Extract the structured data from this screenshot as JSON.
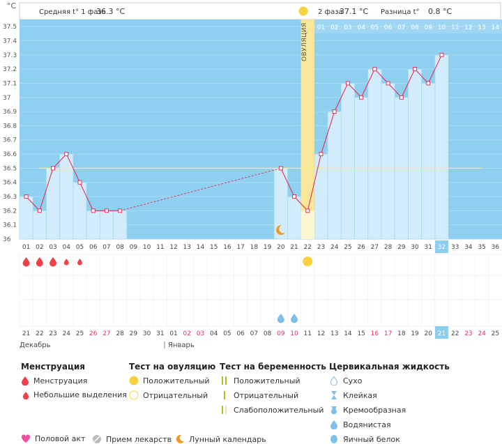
{
  "header": {
    "unit": "°C",
    "phase1_label": "Средняя t° 1 фаза",
    "phase1_value": "36.3 °C",
    "phase2_label": "2 фаза",
    "phase2_value": "37.1 °C",
    "diff_label": "Разница t°",
    "diff_value": "0.8 °C"
  },
  "ovulation_label": "ОВУЛЯЦИЯ",
  "months": {
    "december": "Декабрь",
    "january": "Январь"
  },
  "colors": {
    "sky": "#8fd0f0",
    "bar": "#d3ecfb",
    "bar_border": "#a9d8f2",
    "line": "#e0305a",
    "coverline": "#f2f08a",
    "ovulation": "#f8e69a",
    "weekend": "#e0305a",
    "current_day": "#8dcdee",
    "menstruation": "#f0404a",
    "test_positive": "#f7d23e",
    "fluid": "#7fbfe8",
    "pregnancy_test": "#a7c520",
    "sex": "#f04fa0",
    "meds": "#bbbbbb",
    "moon": "#f09a1a"
  },
  "chart_data": {
    "type": "line",
    "title": "",
    "ylabel": "°C",
    "ylim": [
      36.0,
      37.5
    ],
    "yticks": [
      "37.5",
      "37.4",
      "37.3",
      "37.2",
      "37.1",
      "37",
      "36.9",
      "36.8",
      "36.7",
      "36.6",
      "36.5",
      "36.4",
      "36.3",
      "36.2",
      "36.1",
      "36"
    ],
    "coverline": 36.5,
    "cycle_days": [
      "01",
      "02",
      "03",
      "04",
      "05",
      "06",
      "07",
      "08",
      "09",
      "10",
      "11",
      "12",
      "13",
      "14",
      "15",
      "16",
      "17",
      "18",
      "19",
      "20",
      "21",
      "22",
      "23",
      "24",
      "25",
      "26",
      "27",
      "28",
      "29",
      "30",
      "31",
      "32",
      "33",
      "34",
      "35",
      "36"
    ],
    "dates": [
      "21",
      "22",
      "23",
      "24",
      "25",
      "26",
      "27",
      "28",
      "29",
      "30",
      "31",
      "01",
      "02",
      "03",
      "04",
      "05",
      "06",
      "07",
      "08",
      "09",
      "10",
      "11",
      "12",
      "13",
      "14",
      "15",
      "16",
      "17",
      "18",
      "19",
      "20",
      "21",
      "22",
      "23",
      "24",
      "25"
    ],
    "weekend_days": [
      6,
      7,
      13,
      14,
      20,
      21,
      27,
      28,
      34,
      35
    ],
    "current_day": 32,
    "ovulation_day": 22,
    "dpo_labels": [
      "01",
      "02",
      "03",
      "04",
      "05",
      "06",
      "07",
      "08",
      "09",
      "10",
      "11",
      "12",
      "13",
      "14"
    ],
    "temperatures": [
      {
        "day": 1,
        "value": 36.3
      },
      {
        "day": 2,
        "value": 36.2
      },
      {
        "day": 3,
        "value": 36.5
      },
      {
        "day": 4,
        "value": 36.6
      },
      {
        "day": 5,
        "value": 36.4
      },
      {
        "day": 6,
        "value": 36.2
      },
      {
        "day": 7,
        "value": 36.2
      },
      {
        "day": 8,
        "value": 36.2
      },
      {
        "day": 20,
        "value": 36.5
      },
      {
        "day": 21,
        "value": 36.3
      },
      {
        "day": 22,
        "value": 36.2
      },
      {
        "day": 23,
        "value": 36.6
      },
      {
        "day": 24,
        "value": 36.9
      },
      {
        "day": 25,
        "value": 37.1
      },
      {
        "day": 26,
        "value": 37.0
      },
      {
        "day": 27,
        "value": 37.2
      },
      {
        "day": 28,
        "value": 37.1
      },
      {
        "day": 29,
        "value": 37.0
      },
      {
        "day": 30,
        "value": 37.2
      },
      {
        "day": 31,
        "value": 37.1
      },
      {
        "day": 32,
        "value": 37.3
      }
    ],
    "gap": [
      8,
      20
    ],
    "moon_days": [
      20
    ],
    "menstruation": [
      {
        "day": 1,
        "type": "heavy"
      },
      {
        "day": 2,
        "type": "heavy"
      },
      {
        "day": 3,
        "type": "heavy"
      },
      {
        "day": 4,
        "type": "light"
      },
      {
        "day": 5,
        "type": "light"
      }
    ],
    "ovulation_test_positive_days": [
      22
    ],
    "cervical_fluid": [
      {
        "day": 20,
        "type": "watery"
      },
      {
        "day": 21,
        "type": "watery"
      }
    ]
  },
  "legend": {
    "menstruation": {
      "title": "Менструация",
      "items": [
        "Менструация",
        "Небольшие выделения"
      ]
    },
    "ovulation_test": {
      "title": "Тест на овуляцию",
      "items": [
        "Положительный",
        "Отрицательный"
      ]
    },
    "pregnancy_test": {
      "title": "Тест на беременность",
      "items": [
        "Положительный",
        "Отрицательный",
        "Слабоположительный"
      ]
    },
    "cervical_fluid": {
      "title": "Цервикальная жидкость",
      "items": [
        "Сухо",
        "Клейкая",
        "Кремообразная",
        "Водянистая",
        "Яичный белок"
      ]
    },
    "other": [
      "Половой акт",
      "Прием лекарств",
      "Лунный календарь"
    ]
  }
}
